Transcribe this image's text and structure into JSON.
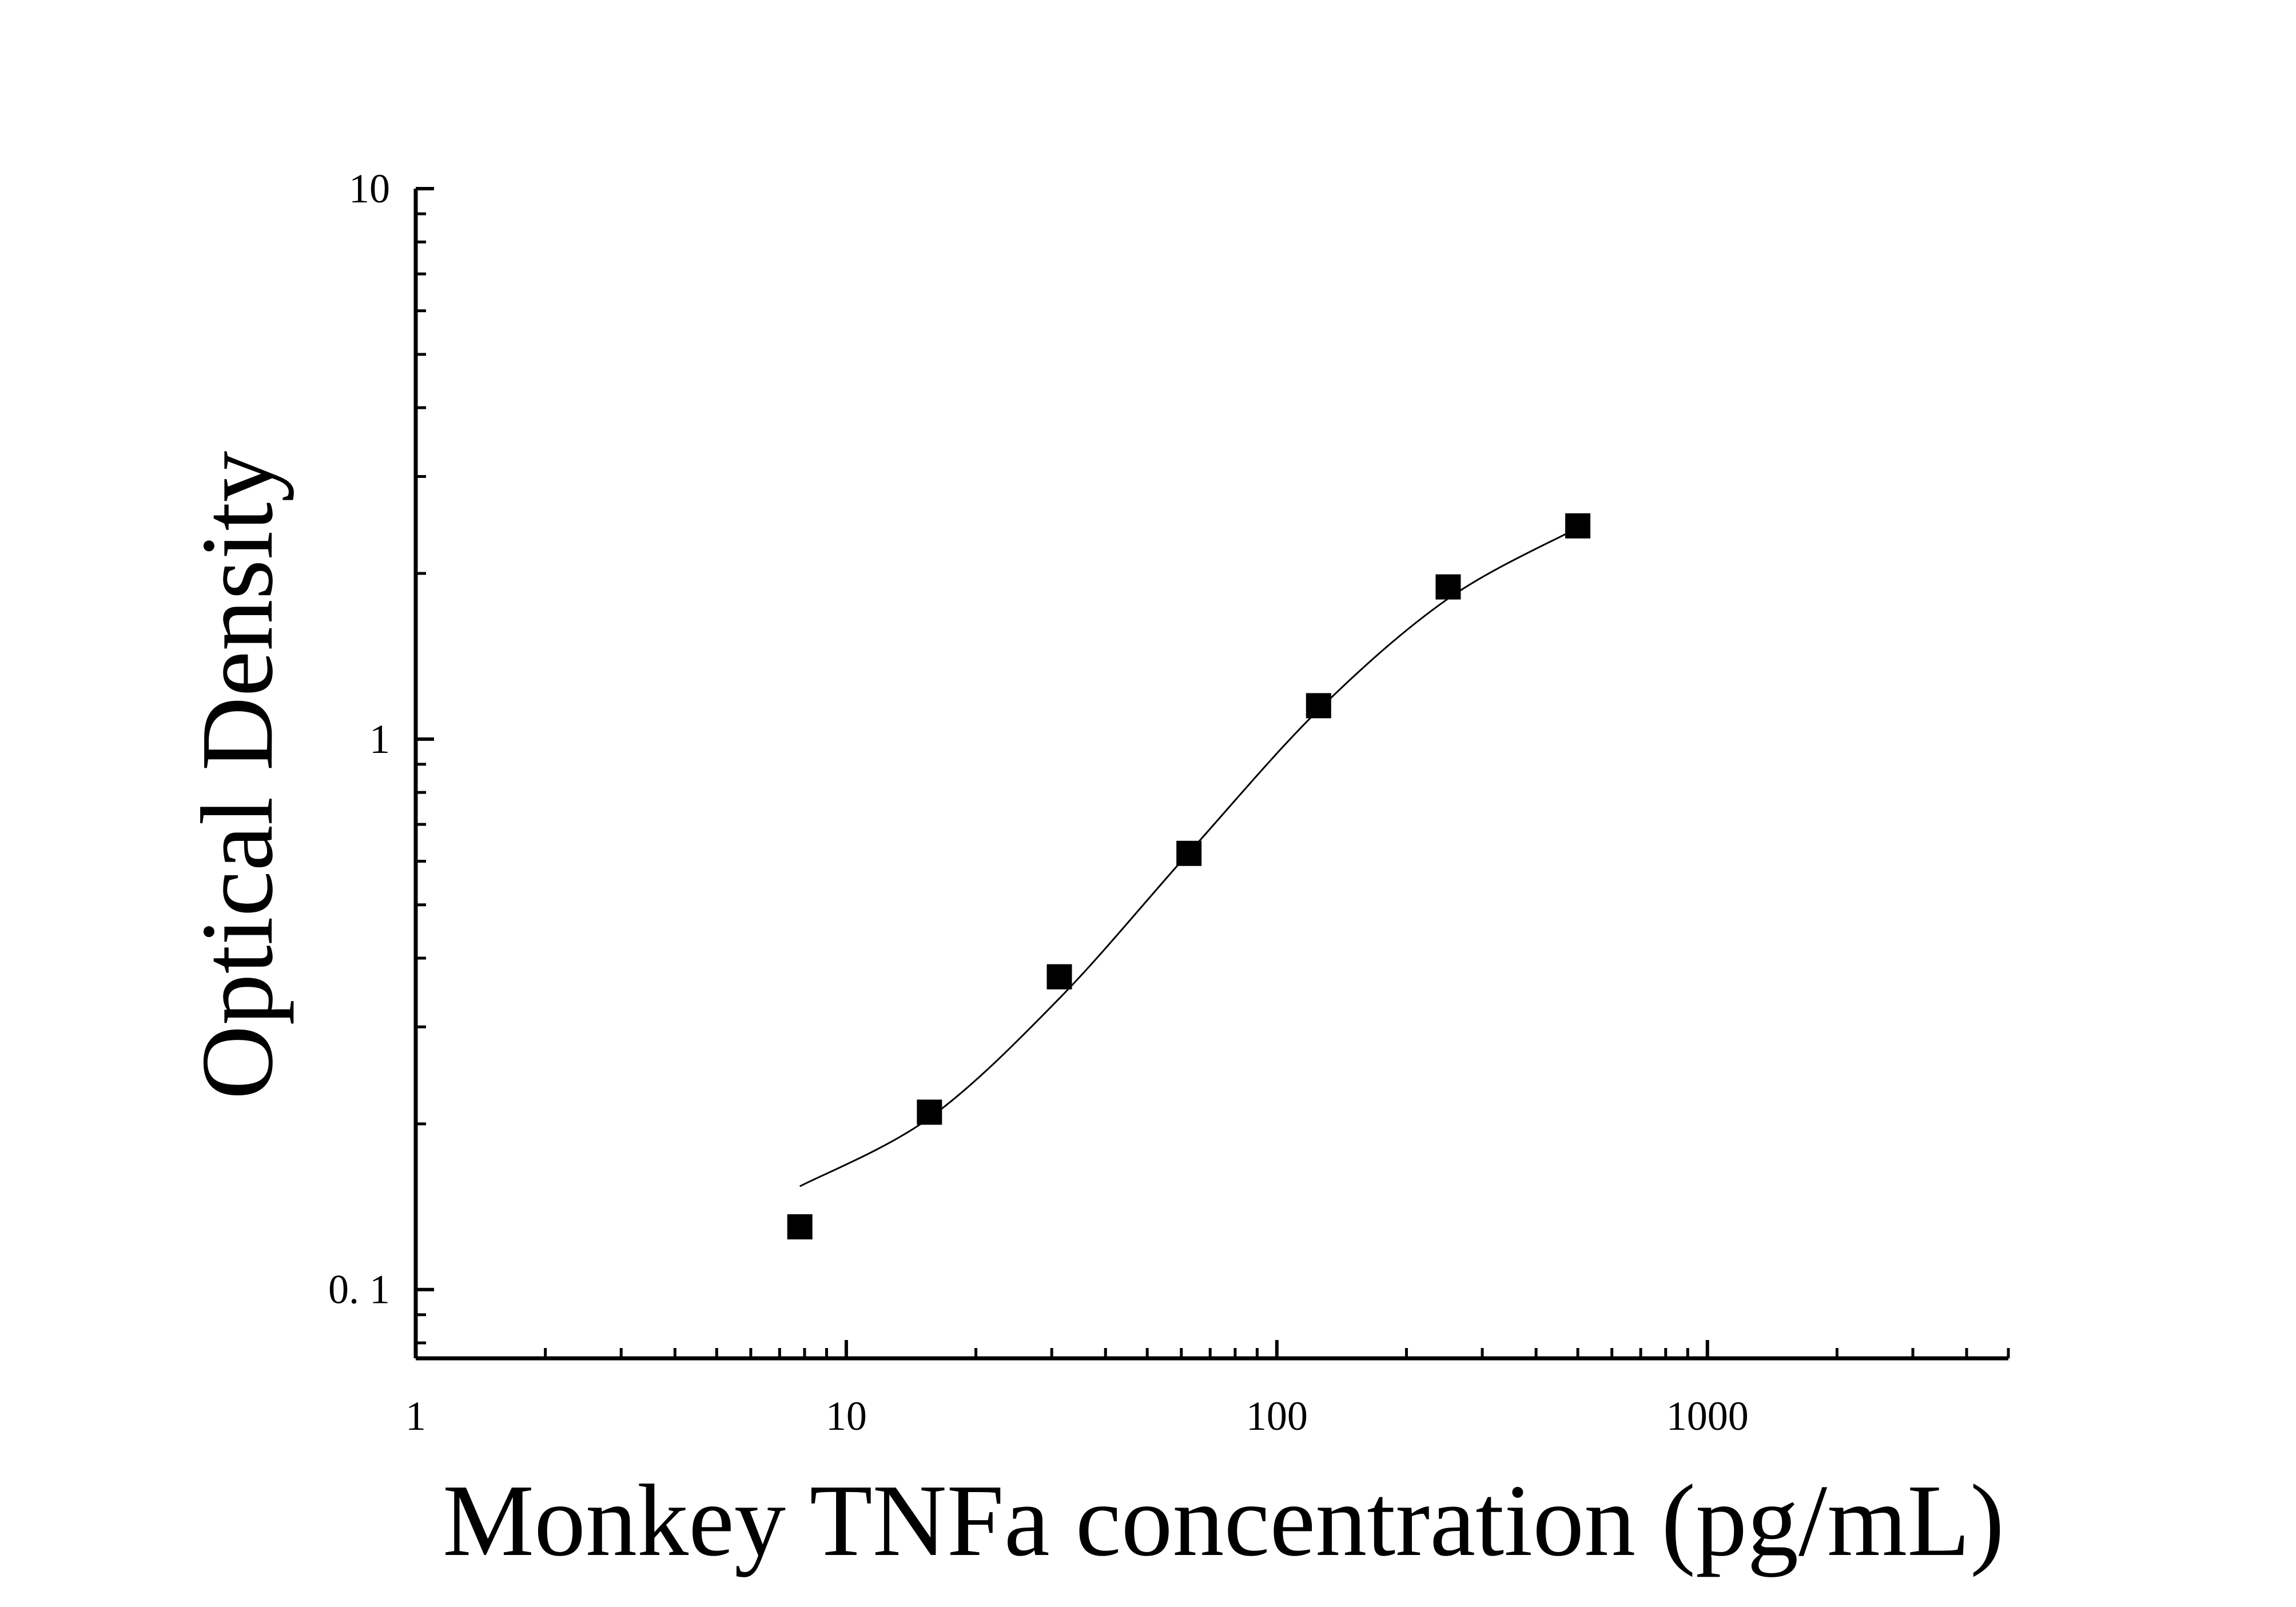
{
  "chart_data": {
    "type": "scatter",
    "title": "",
    "xlabel": "Monkey TNFa concentration (pg/mL)",
    "ylabel": "Optical Density",
    "x_scale": "log",
    "y_scale": "log",
    "xlim": [
      1,
      5000
    ],
    "ylim": [
      0.075,
      10
    ],
    "x_ticks": [
      {
        "value": 1,
        "label": "1"
      },
      {
        "value": 10,
        "label": "10"
      },
      {
        "value": 100,
        "label": "100"
      },
      {
        "value": 1000,
        "label": "1000"
      }
    ],
    "y_ticks": [
      {
        "value": 0.1,
        "label": "0. 1"
      },
      {
        "value": 1,
        "label": "1"
      },
      {
        "value": 10,
        "label": "10"
      }
    ],
    "grid": false,
    "series": [
      {
        "marker": "square",
        "color": "#000000",
        "x": [
          7.8,
          15.6,
          31.25,
          62.5,
          125,
          250,
          500
        ],
        "y": [
          0.13,
          0.21,
          0.37,
          0.62,
          1.15,
          1.89,
          2.44
        ]
      },
      {
        "type": "line",
        "color": "#000000",
        "x": [
          7.8,
          15.6,
          31.25,
          62.5,
          125,
          250,
          500
        ],
        "y": [
          0.154,
          0.205,
          0.338,
          0.622,
          1.13,
          1.8,
          2.42
        ]
      }
    ]
  }
}
